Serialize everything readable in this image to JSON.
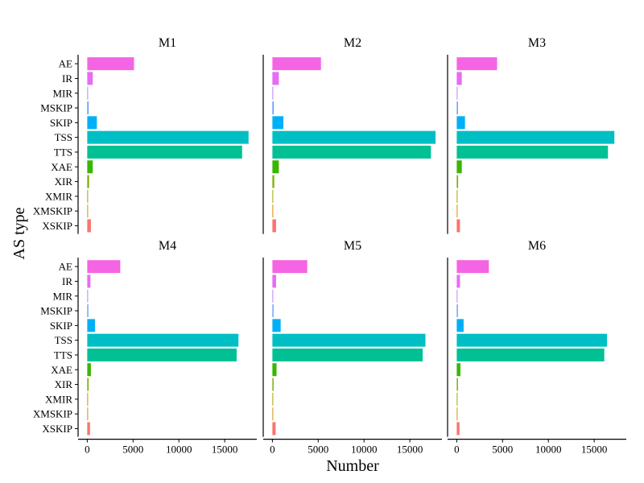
{
  "chart_data": {
    "type": "bar",
    "orientation": "horizontal",
    "xlabel": "Number",
    "ylabel": "AS type",
    "categories": [
      "AE",
      "IR",
      "MIR",
      "MSKIP",
      "SKIP",
      "TSS",
      "TTS",
      "XAE",
      "XIR",
      "XMIR",
      "XMSKIP",
      "XSKIP"
    ],
    "category_colors": [
      "#F564E3",
      "#E76BF3",
      "#B983FF",
      "#619CFF",
      "#00B0F6",
      "#00BFC4",
      "#00C094",
      "#39B600",
      "#7CAE00",
      "#A3A500",
      "#D89000",
      "#F8766D"
    ],
    "xlim": [
      -1000,
      18500
    ],
    "xticks": [
      0,
      5000,
      10000,
      15000
    ],
    "xtick_labels": [
      "0",
      "5000",
      "10000",
      "15000"
    ],
    "grid": false,
    "facets": [
      {
        "name": "M1",
        "values": [
          5100,
          600,
          50,
          150,
          1050,
          17600,
          16900,
          600,
          200,
          20,
          80,
          400
        ]
      },
      {
        "name": "M2",
        "values": [
          5300,
          700,
          60,
          150,
          1200,
          17800,
          17300,
          700,
          200,
          20,
          90,
          400
        ]
      },
      {
        "name": "M3",
        "values": [
          4400,
          550,
          50,
          130,
          900,
          17200,
          16500,
          550,
          150,
          20,
          70,
          350
        ]
      },
      {
        "name": "M4",
        "values": [
          3600,
          350,
          40,
          120,
          850,
          16500,
          16300,
          400,
          150,
          20,
          70,
          300
        ]
      },
      {
        "name": "M5",
        "values": [
          3800,
          400,
          40,
          120,
          900,
          16700,
          16400,
          450,
          130,
          20,
          80,
          350
        ]
      },
      {
        "name": "M6",
        "values": [
          3500,
          350,
          40,
          120,
          750,
          16400,
          16100,
          400,
          130,
          20,
          60,
          300
        ]
      }
    ]
  }
}
